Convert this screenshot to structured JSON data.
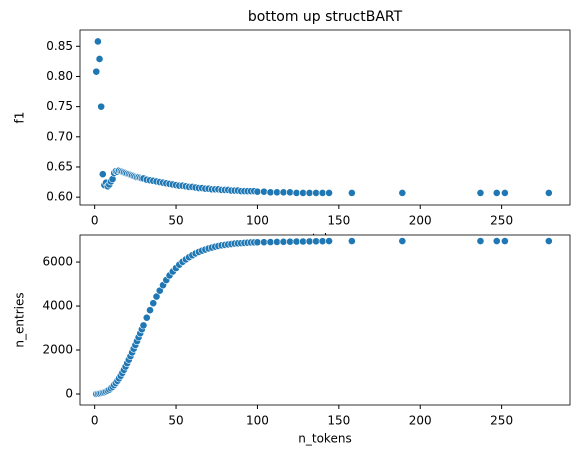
{
  "chart_data": [
    {
      "type": "scatter",
      "title": "bottom up structBART",
      "xlabel": "n_tokens",
      "ylabel": "f1",
      "color": "#1f77b4",
      "x": [
        1,
        2,
        3,
        4,
        5,
        6,
        7,
        8,
        9,
        10,
        11,
        12,
        13,
        14,
        15,
        16,
        17,
        18,
        19,
        20,
        21,
        22,
        23,
        24,
        25,
        26,
        27,
        28,
        29,
        30,
        32,
        34,
        36,
        38,
        40,
        42,
        44,
        46,
        48,
        50,
        52,
        54,
        56,
        58,
        60,
        62,
        64,
        66,
        68,
        70,
        72,
        74,
        76,
        78,
        80,
        82,
        84,
        86,
        88,
        90,
        92,
        94,
        96,
        98,
        100,
        104,
        108,
        112,
        116,
        120,
        124,
        128,
        132,
        136,
        140,
        144,
        158,
        189,
        237,
        247,
        252,
        279
      ],
      "values": [
        0.808,
        0.858,
        0.829,
        0.75,
        0.638,
        0.62,
        0.624,
        0.618,
        0.621,
        0.626,
        0.63,
        0.64,
        0.643,
        0.642,
        0.644,
        0.643,
        0.642,
        0.641,
        0.64,
        0.639,
        0.638,
        0.637,
        0.636,
        0.635,
        0.634,
        0.633,
        0.633,
        0.632,
        0.631,
        0.631,
        0.629,
        0.628,
        0.627,
        0.626,
        0.625,
        0.624,
        0.623,
        0.622,
        0.621,
        0.62,
        0.619,
        0.619,
        0.618,
        0.617,
        0.617,
        0.616,
        0.615,
        0.615,
        0.614,
        0.614,
        0.613,
        0.613,
        0.613,
        0.612,
        0.612,
        0.612,
        0.611,
        0.611,
        0.611,
        0.61,
        0.61,
        0.61,
        0.61,
        0.61,
        0.609,
        0.609,
        0.608,
        0.608,
        0.608,
        0.608,
        0.607,
        0.607,
        0.607,
        0.607,
        0.607,
        0.607,
        0.607,
        0.607,
        0.607,
        0.607,
        0.607,
        0.607
      ],
      "xlim": [
        -9,
        292
      ],
      "xticks": [
        0,
        50,
        100,
        150,
        200,
        250
      ],
      "ylim": [
        0.587,
        0.877
      ],
      "yticks": [
        {
          "value": 0.6,
          "label": "0.60"
        },
        0.65,
        {
          "value": 0.7,
          "label": "0.70"
        },
        0.75,
        {
          "value": 0.8,
          "label": "0.80"
        },
        0.85
      ]
    },
    {
      "type": "scatter",
      "xlabel": "n_tokens",
      "ylabel": "n_entries",
      "color": "#1f77b4",
      "x": [
        1,
        2,
        3,
        4,
        5,
        6,
        7,
        8,
        9,
        10,
        11,
        12,
        13,
        14,
        15,
        16,
        17,
        18,
        19,
        20,
        21,
        22,
        23,
        24,
        25,
        26,
        27,
        28,
        29,
        30,
        32,
        34,
        36,
        38,
        40,
        42,
        44,
        46,
        48,
        50,
        52,
        54,
        56,
        58,
        60,
        62,
        64,
        66,
        68,
        70,
        72,
        74,
        76,
        78,
        80,
        82,
        84,
        86,
        88,
        90,
        92,
        94,
        96,
        98,
        100,
        104,
        108,
        112,
        116,
        120,
        124,
        128,
        132,
        136,
        140,
        144,
        158,
        189,
        237,
        247,
        252,
        279
      ],
      "values": [
        0,
        10,
        20,
        40,
        60,
        80,
        110,
        150,
        200,
        260,
        330,
        410,
        500,
        600,
        710,
        830,
        960,
        1100,
        1250,
        1400,
        1560,
        1720,
        1890,
        2060,
        2230,
        2400,
        2580,
        2760,
        2940,
        3120,
        3470,
        3810,
        4130,
        4430,
        4700,
        4950,
        5180,
        5390,
        5570,
        5730,
        5880,
        6010,
        6120,
        6220,
        6310,
        6390,
        6460,
        6520,
        6570,
        6620,
        6660,
        6700,
        6730,
        6760,
        6780,
        6800,
        6820,
        6840,
        6850,
        6860,
        6870,
        6880,
        6890,
        6895,
        6900,
        6905,
        6910,
        6915,
        6920,
        6925,
        6930,
        6935,
        6940,
        6945,
        6950,
        6955,
        6955,
        6955,
        6955,
        6955,
        6955,
        6955
      ],
      "xlim": [
        -9,
        292
      ],
      "xticks": [
        0,
        50,
        100,
        150,
        200,
        250
      ],
      "ylim": [
        -500,
        7230
      ],
      "yticks": [
        0,
        2000,
        4000,
        6000
      ]
    }
  ]
}
